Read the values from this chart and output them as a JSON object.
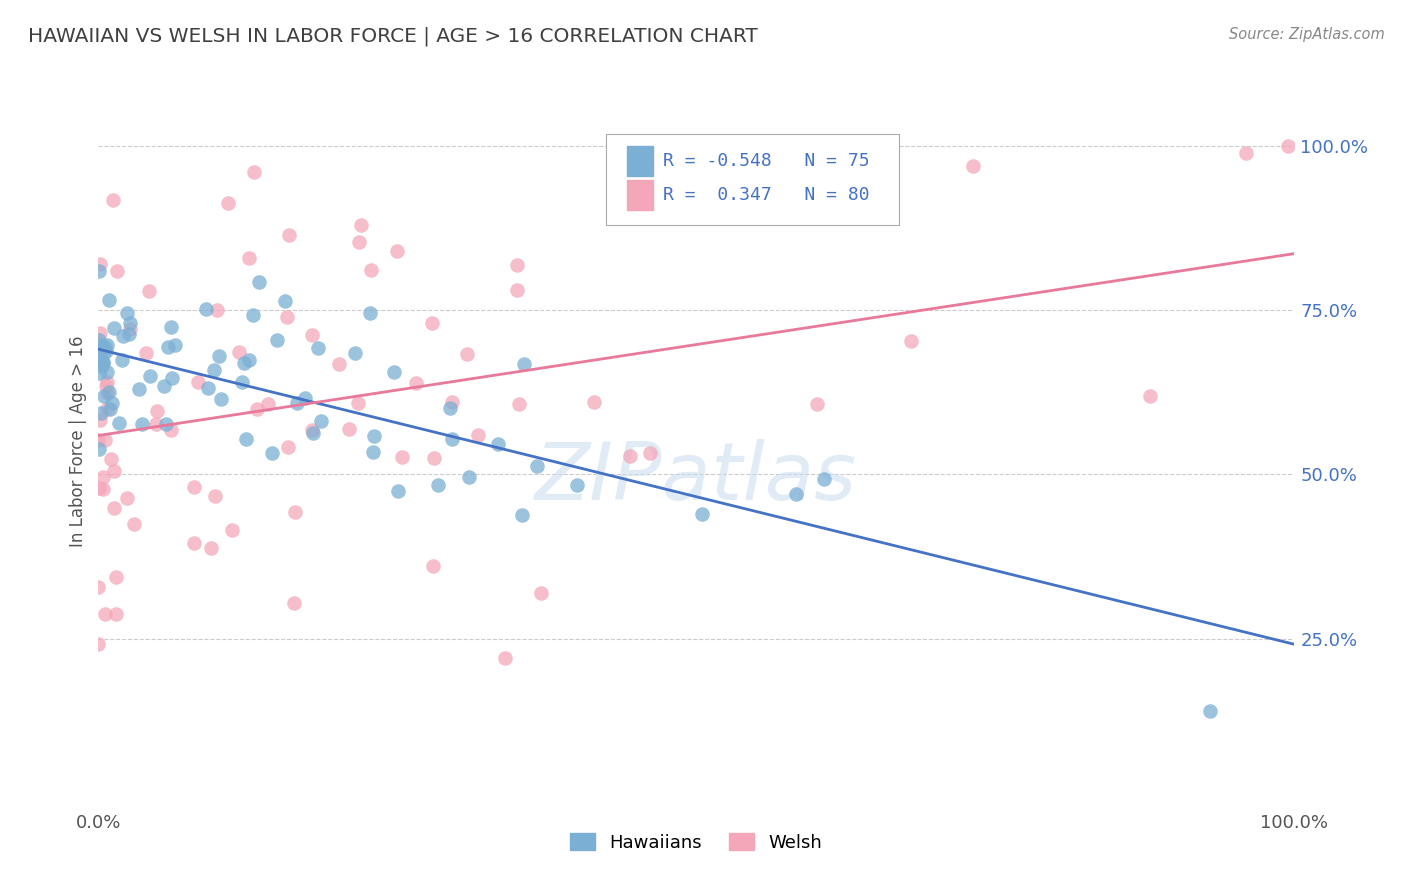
{
  "title": "HAWAIIAN VS WELSH IN LABOR FORCE | AGE > 16 CORRELATION CHART",
  "source": "Source: ZipAtlas.com",
  "ylabel": "In Labor Force | Age > 16",
  "legend_r_hawaiian": "-0.548",
  "legend_n_hawaiian": "75",
  "legend_r_welsh": "0.347",
  "legend_n_welsh": "80",
  "color_hawaiian": "#7BAFD4",
  "color_welsh": "#F4A7B9",
  "line_color_hawaiian": "#4472C4",
  "line_color_welsh": "#E8799A",
  "watermark": "ZIPatlas",
  "bg_color": "#ffffff",
  "grid_color": "#cccccc",
  "tick_color_x": "#555555",
  "tick_color_y": "#4472C4",
  "title_color": "#404040",
  "source_color": "#888888",
  "ylabel_color": "#555555"
}
